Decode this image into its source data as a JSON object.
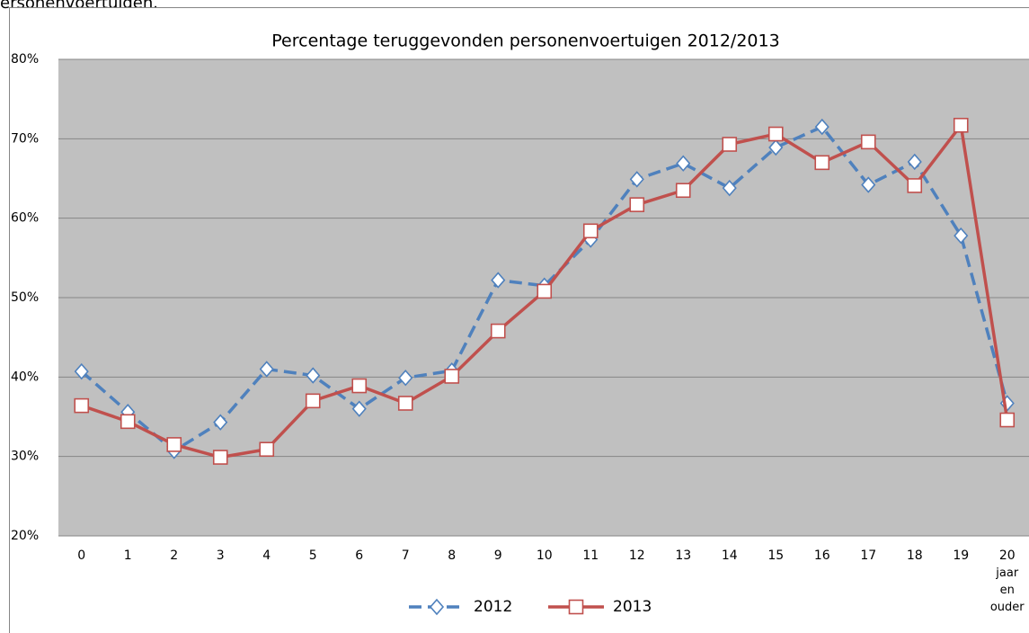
{
  "caption": "ersonenvoertuigen.",
  "chart_data": {
    "type": "line",
    "title": "Percentage teruggevonden personenvoertuigen 2012/2013",
    "categories": [
      "0",
      "1",
      "2",
      "3",
      "4",
      "5",
      "6",
      "7",
      "8",
      "9",
      "10",
      "11",
      "12",
      "13",
      "14",
      "15",
      "16",
      "17",
      "18",
      "19",
      "20\njaar\nen\nouder"
    ],
    "series": [
      {
        "name": "2012",
        "color": "#4f81bd",
        "dash": true,
        "marker": "diamond",
        "values": [
          40.7,
          35.6,
          30.7,
          34.3,
          41.0,
          40.2,
          36.0,
          39.9,
          40.8,
          52.2,
          51.5,
          57.3,
          64.9,
          66.9,
          63.8,
          68.9,
          71.5,
          64.2,
          67.1,
          57.8,
          36.7
        ]
      },
      {
        "name": "2013",
        "color": "#c0504d",
        "dash": false,
        "marker": "square",
        "values": [
          36.4,
          34.4,
          31.5,
          29.9,
          30.9,
          37.0,
          38.9,
          36.7,
          40.1,
          45.8,
          50.8,
          58.4,
          61.7,
          63.5,
          69.3,
          70.6,
          67.0,
          69.6,
          64.1,
          71.7,
          34.6
        ]
      }
    ],
    "ylim": [
      20,
      80
    ],
    "yticks": [
      {
        "value": 20,
        "label": "20%"
      },
      {
        "value": 30,
        "label": "30%"
      },
      {
        "value": 40,
        "label": "40%"
      },
      {
        "value": 50,
        "label": "50%"
      },
      {
        "value": 60,
        "label": "60%"
      },
      {
        "value": 70,
        "label": "70%"
      },
      {
        "value": 80,
        "label": "80%"
      }
    ],
    "grid": true,
    "legend": "bottom"
  }
}
